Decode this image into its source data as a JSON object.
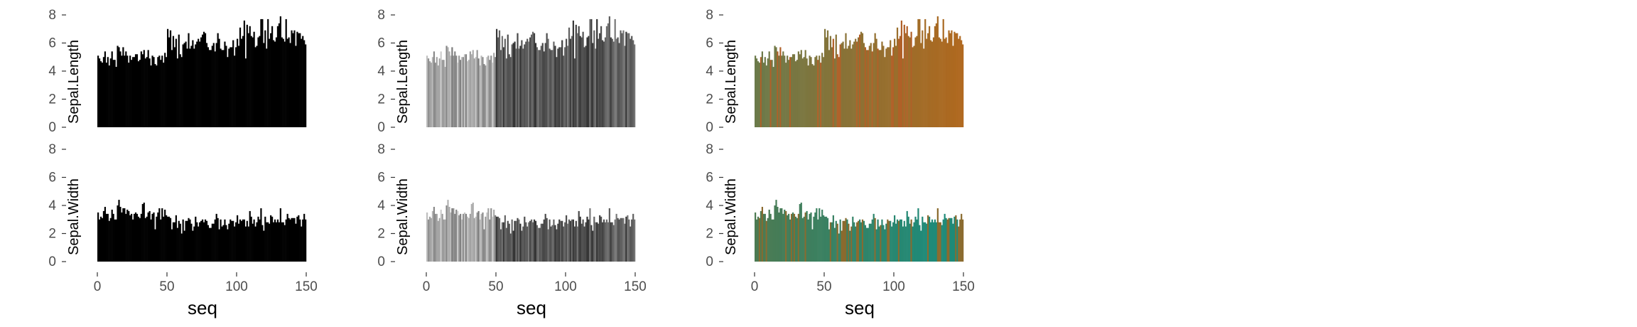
{
  "figure": {
    "background": "#ffffff",
    "columns": [
      "black",
      "grey",
      "color"
    ],
    "rows": [
      "Sepal.Length",
      "Sepal.Width"
    ]
  },
  "x_axis": {
    "label": "seq",
    "ticks": [
      0,
      50,
      100,
      150
    ],
    "tick_labels": [
      "0",
      "50",
      "100",
      "150"
    ],
    "range": [
      0,
      150
    ]
  },
  "y_axis": {
    "ticks": [
      0,
      2,
      4,
      6,
      8
    ],
    "tick_labels": [
      "0",
      "2",
      "4",
      "6",
      "8"
    ],
    "range": [
      0,
      8
    ]
  },
  "chart_data": {
    "type": "bar",
    "title": "",
    "xlabel": "seq",
    "ylim": [
      0,
      8
    ],
    "xlim": [
      0,
      150
    ],
    "x": [
      1,
      2,
      3,
      4,
      5,
      6,
      7,
      8,
      9,
      10,
      11,
      12,
      13,
      14,
      15,
      16,
      17,
      18,
      19,
      20,
      21,
      22,
      23,
      24,
      25,
      26,
      27,
      28,
      29,
      30,
      31,
      32,
      33,
      34,
      35,
      36,
      37,
      38,
      39,
      40,
      41,
      42,
      43,
      44,
      45,
      46,
      47,
      48,
      49,
      50,
      51,
      52,
      53,
      54,
      55,
      56,
      57,
      58,
      59,
      60,
      61,
      62,
      63,
      64,
      65,
      66,
      67,
      68,
      69,
      70,
      71,
      72,
      73,
      74,
      75,
      76,
      77,
      78,
      79,
      80,
      81,
      82,
      83,
      84,
      85,
      86,
      87,
      88,
      89,
      90,
      91,
      92,
      93,
      94,
      95,
      96,
      97,
      98,
      99,
      100,
      101,
      102,
      103,
      104,
      105,
      106,
      107,
      108,
      109,
      110,
      111,
      112,
      113,
      114,
      115,
      116,
      117,
      118,
      119,
      120,
      121,
      122,
      123,
      124,
      125,
      126,
      127,
      128,
      129,
      130,
      131,
      132,
      133,
      134,
      135,
      136,
      137,
      138,
      139,
      140,
      141,
      142,
      143,
      144,
      145,
      146,
      147,
      148,
      149,
      150
    ],
    "series": [
      {
        "name": "Sepal.Length",
        "values": [
          5.1,
          4.9,
          4.7,
          4.6,
          5.0,
          5.4,
          4.6,
          5.0,
          4.4,
          4.9,
          5.4,
          4.8,
          4.8,
          4.3,
          5.8,
          5.7,
          5.4,
          5.1,
          5.7,
          5.1,
          5.4,
          5.1,
          4.6,
          5.1,
          4.8,
          5.0,
          5.0,
          5.2,
          5.2,
          4.7,
          4.8,
          5.4,
          5.2,
          5.5,
          4.9,
          5.0,
          5.5,
          4.9,
          4.4,
          5.1,
          5.0,
          4.5,
          4.4,
          5.0,
          5.1,
          4.8,
          5.1,
          4.6,
          5.3,
          5.0,
          7.0,
          6.4,
          6.9,
          5.5,
          6.5,
          5.7,
          6.3,
          4.9,
          6.6,
          5.2,
          5.0,
          5.9,
          6.0,
          6.1,
          5.6,
          6.7,
          5.6,
          5.8,
          6.2,
          5.6,
          5.9,
          6.1,
          6.3,
          6.1,
          6.4,
          6.6,
          6.8,
          6.7,
          6.0,
          5.7,
          5.5,
          5.5,
          5.8,
          6.0,
          5.4,
          6.0,
          6.7,
          6.3,
          5.6,
          5.5,
          5.5,
          6.1,
          5.8,
          5.0,
          5.6,
          5.7,
          5.7,
          6.2,
          5.1,
          5.7,
          6.3,
          5.8,
          7.1,
          6.3,
          6.5,
          7.6,
          4.9,
          7.3,
          6.7,
          7.2,
          6.5,
          6.4,
          6.8,
          5.7,
          5.8,
          6.4,
          6.5,
          7.7,
          7.7,
          6.0,
          6.9,
          5.6,
          7.7,
          6.3,
          6.7,
          7.2,
          6.2,
          6.1,
          6.4,
          7.2,
          7.4,
          7.9,
          6.4,
          6.3,
          6.1,
          7.7,
          6.3,
          6.4,
          6.0,
          6.9,
          6.7,
          6.9,
          5.8,
          6.8,
          6.7,
          6.7,
          6.3,
          6.5,
          6.2,
          5.9
        ]
      },
      {
        "name": "Sepal.Width",
        "values": [
          3.5,
          3.0,
          3.2,
          3.1,
          3.6,
          3.9,
          3.4,
          3.4,
          2.9,
          3.1,
          3.7,
          3.4,
          3.0,
          3.0,
          4.0,
          4.4,
          3.9,
          3.5,
          3.8,
          3.8,
          3.4,
          3.7,
          3.6,
          3.3,
          3.4,
          3.0,
          3.4,
          3.5,
          3.4,
          3.2,
          3.1,
          3.4,
          4.1,
          4.2,
          3.1,
          3.2,
          3.5,
          3.6,
          3.0,
          3.4,
          3.5,
          2.3,
          3.2,
          3.5,
          3.8,
          3.0,
          3.8,
          3.2,
          3.7,
          3.3,
          3.2,
          3.2,
          3.1,
          2.3,
          2.8,
          2.8,
          3.3,
          2.4,
          2.9,
          2.7,
          2.0,
          3.0,
          2.2,
          2.9,
          2.9,
          3.1,
          3.0,
          2.7,
          2.2,
          2.5,
          3.2,
          2.8,
          2.5,
          2.8,
          2.9,
          3.0,
          2.8,
          3.0,
          2.9,
          2.6,
          2.4,
          2.4,
          2.7,
          2.7,
          3.0,
          3.4,
          3.1,
          2.3,
          3.0,
          2.5,
          2.6,
          3.0,
          2.6,
          2.3,
          2.7,
          3.0,
          2.9,
          2.9,
          2.5,
          2.8,
          3.3,
          2.7,
          3.0,
          2.9,
          3.0,
          3.0,
          2.5,
          2.9,
          2.5,
          3.6,
          3.2,
          2.7,
          3.0,
          2.5,
          2.8,
          3.2,
          3.0,
          3.8,
          2.6,
          2.2,
          3.2,
          2.8,
          2.8,
          2.7,
          3.3,
          3.2,
          2.8,
          3.0,
          2.8,
          3.0,
          2.8,
          3.8,
          2.8,
          2.8,
          2.6,
          3.0,
          3.4,
          3.1,
          3.0,
          3.1,
          3.1,
          3.1,
          2.7,
          3.2,
          3.3,
          3.0,
          2.5,
          3.0,
          3.4,
          3.0
        ]
      }
    ],
    "panels": [
      {
        "column": 1,
        "series": "Sepal.Length",
        "fill": "solid-black"
      },
      {
        "column": 1,
        "series": "Sepal.Width",
        "fill": "solid-black"
      },
      {
        "column": 2,
        "series": "Sepal.Length",
        "fill": "grey-shades"
      },
      {
        "column": 2,
        "series": "Sepal.Width",
        "fill": "grey-shades"
      },
      {
        "column": 3,
        "series": "Sepal.Length",
        "fill": "olive-to-orange"
      },
      {
        "column": 3,
        "series": "Sepal.Width",
        "fill": "green-to-teal"
      }
    ],
    "grid": false,
    "legend": "none"
  },
  "colors": {
    "black": "#000000",
    "tick_text": "#4d4d4d",
    "axis_line": "#333333",
    "grey_light": "#cfcfcf",
    "grey_mid": "#7a7a7a",
    "grey_dark": "#2a2a2a",
    "olive": "#6b7a4a",
    "orange": "#b0681e",
    "brown": "#8a6a2e",
    "green": "#4c7a52",
    "teal": "#1f8a78",
    "rust": "#b06028"
  }
}
